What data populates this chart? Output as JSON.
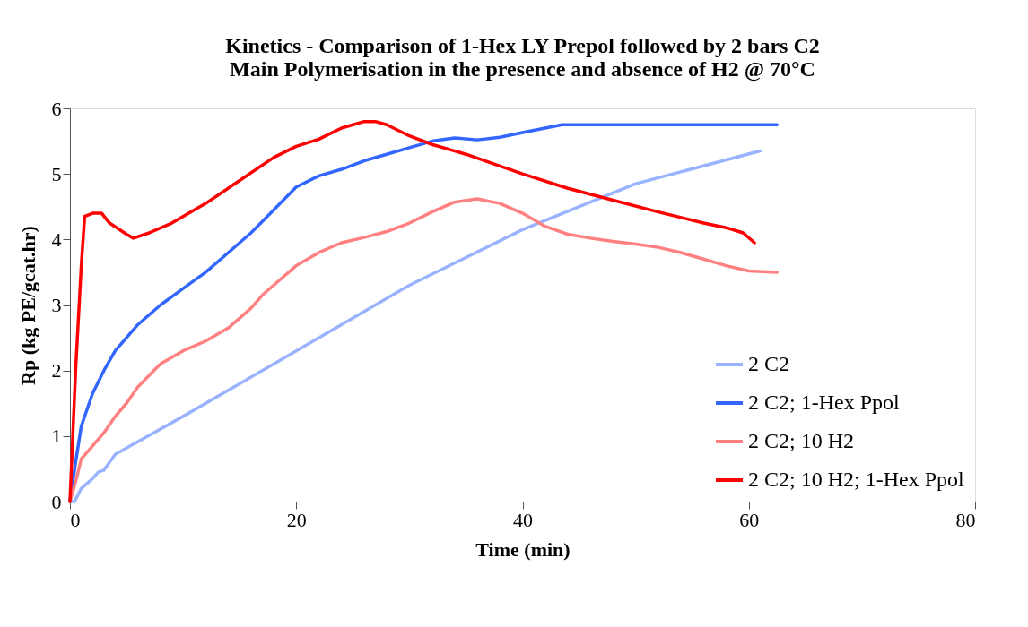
{
  "chart_data": {
    "type": "line",
    "title": [
      "Kinetics  - Comparison of 1-Hex LY Prepol followed by 2 bars C2",
      "Main Polymerisation in the presence and absence of H2 @ 70°C"
    ],
    "xlabel": "Time (min)",
    "ylabel": "Rp (kg PE/gcat.hr)",
    "xlim": [
      0,
      80
    ],
    "xticks": [
      0,
      20,
      40,
      60,
      80
    ],
    "ylim": [
      0,
      6
    ],
    "yticks": [
      0,
      1,
      2,
      3,
      4,
      5,
      6
    ],
    "grid": false,
    "legend": "bottom right",
    "marker": "none",
    "line_style": "solid",
    "series": [
      {
        "name": "2 C2",
        "color": "#99b3ff",
        "x": [
          0,
          0.4,
          1,
          2,
          2.5,
          3,
          4,
          10,
          20,
          30,
          40,
          50,
          61
        ],
        "values": [
          0,
          0,
          0.2,
          0.35,
          0.45,
          0.48,
          0.72,
          1.3,
          2.3,
          3.3,
          4.15,
          4.85,
          5.35
        ]
      },
      {
        "name": "2 C2; 1-Hex Ppol",
        "color": "#3366ff",
        "x": [
          0,
          0.5,
          1,
          2,
          3,
          4,
          6,
          8,
          10,
          12,
          14,
          16,
          18,
          20,
          22,
          24,
          26,
          28,
          30,
          32,
          34,
          36,
          38,
          40,
          42,
          43.5,
          50,
          62.5
        ],
        "values": [
          0,
          0.6,
          1.15,
          1.65,
          2.0,
          2.3,
          2.7,
          3.0,
          3.25,
          3.5,
          3.8,
          4.1,
          4.45,
          4.8,
          4.97,
          5.07,
          5.2,
          5.3,
          5.4,
          5.5,
          5.55,
          5.52,
          5.56,
          5.63,
          5.7,
          5.75,
          5.75,
          5.75
        ]
      },
      {
        "name": "2 C2; 10 H2",
        "color": "#ff8080",
        "x": [
          0,
          0.5,
          1,
          2,
          3,
          4,
          5,
          6,
          8,
          10,
          12,
          14,
          15,
          16,
          17,
          18,
          20,
          22,
          24,
          26,
          28,
          30,
          32,
          34,
          36,
          38,
          40,
          42,
          44,
          46,
          48,
          50,
          52,
          54,
          56,
          58,
          60,
          62.5
        ],
        "values": [
          0,
          0.3,
          0.65,
          0.85,
          1.05,
          1.3,
          1.5,
          1.75,
          2.1,
          2.3,
          2.45,
          2.65,
          2.8,
          2.95,
          3.15,
          3.3,
          3.6,
          3.8,
          3.95,
          4.03,
          4.12,
          4.25,
          4.42,
          4.57,
          4.62,
          4.55,
          4.4,
          4.2,
          4.08,
          4.02,
          3.97,
          3.93,
          3.88,
          3.8,
          3.7,
          3.6,
          3.52,
          3.5
        ]
      },
      {
        "name": "2 C2; 10 H2; 1-Hex Ppol",
        "color": "#ff0000",
        "x": [
          0,
          0.5,
          1,
          1.3,
          2,
          2.8,
          3.5,
          5,
          5.6,
          7,
          9,
          12,
          15,
          18,
          20,
          22,
          24,
          26,
          27,
          28,
          30,
          32,
          35,
          38,
          40,
          44,
          48,
          52,
          56,
          58,
          59.5,
          60.5
        ],
        "values": [
          0,
          2.0,
          3.6,
          4.35,
          4.4,
          4.4,
          4.25,
          4.08,
          4.02,
          4.1,
          4.25,
          4.55,
          4.9,
          5.25,
          5.42,
          5.53,
          5.7,
          5.8,
          5.8,
          5.75,
          5.58,
          5.45,
          5.3,
          5.12,
          5.0,
          4.78,
          4.6,
          4.42,
          4.25,
          4.18,
          4.1,
          3.95
        ]
      }
    ]
  }
}
